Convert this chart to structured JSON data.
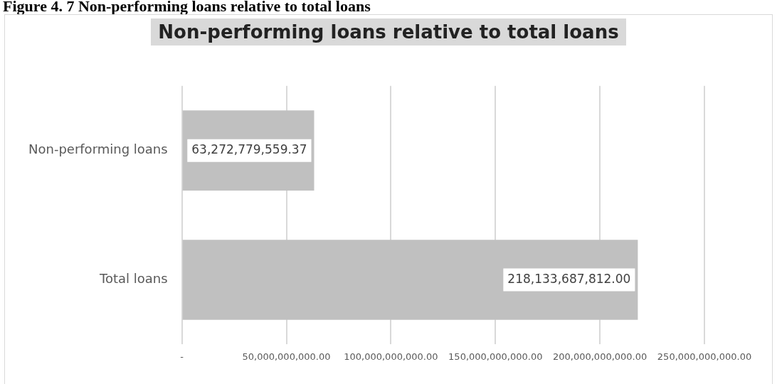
{
  "chart_data": {
    "type": "bar",
    "orientation": "horizontal",
    "title": "Non-performing loans relative to total loans",
    "annotations": [
      "Figure 4. 7 Non-performing loans relative to total loans"
    ],
    "categories": [
      "Non-performing loans",
      "Total loans"
    ],
    "values": [
      63272779559.37,
      218133687812.0
    ],
    "color": "#c0c0c0",
    "xlim": [
      0,
      250000000000
    ],
    "xticks": [
      {
        "value": 0,
        "label": "-"
      },
      {
        "value": 50000000000,
        "label": "50,000,000,000.00"
      },
      {
        "value": 100000000000,
        "label": "100,000,000,000.00"
      },
      {
        "value": 150000000000,
        "label": "150,000,000,000.00"
      },
      {
        "value": 200000000000,
        "label": "200,000,000,000.00"
      },
      {
        "value": 250000000000,
        "label": "250,000,000,000.00"
      }
    ],
    "value_labels": [
      "63,272,779,559.37",
      "218,133,687,812.00"
    ],
    "grid": "x",
    "legend": false
  }
}
